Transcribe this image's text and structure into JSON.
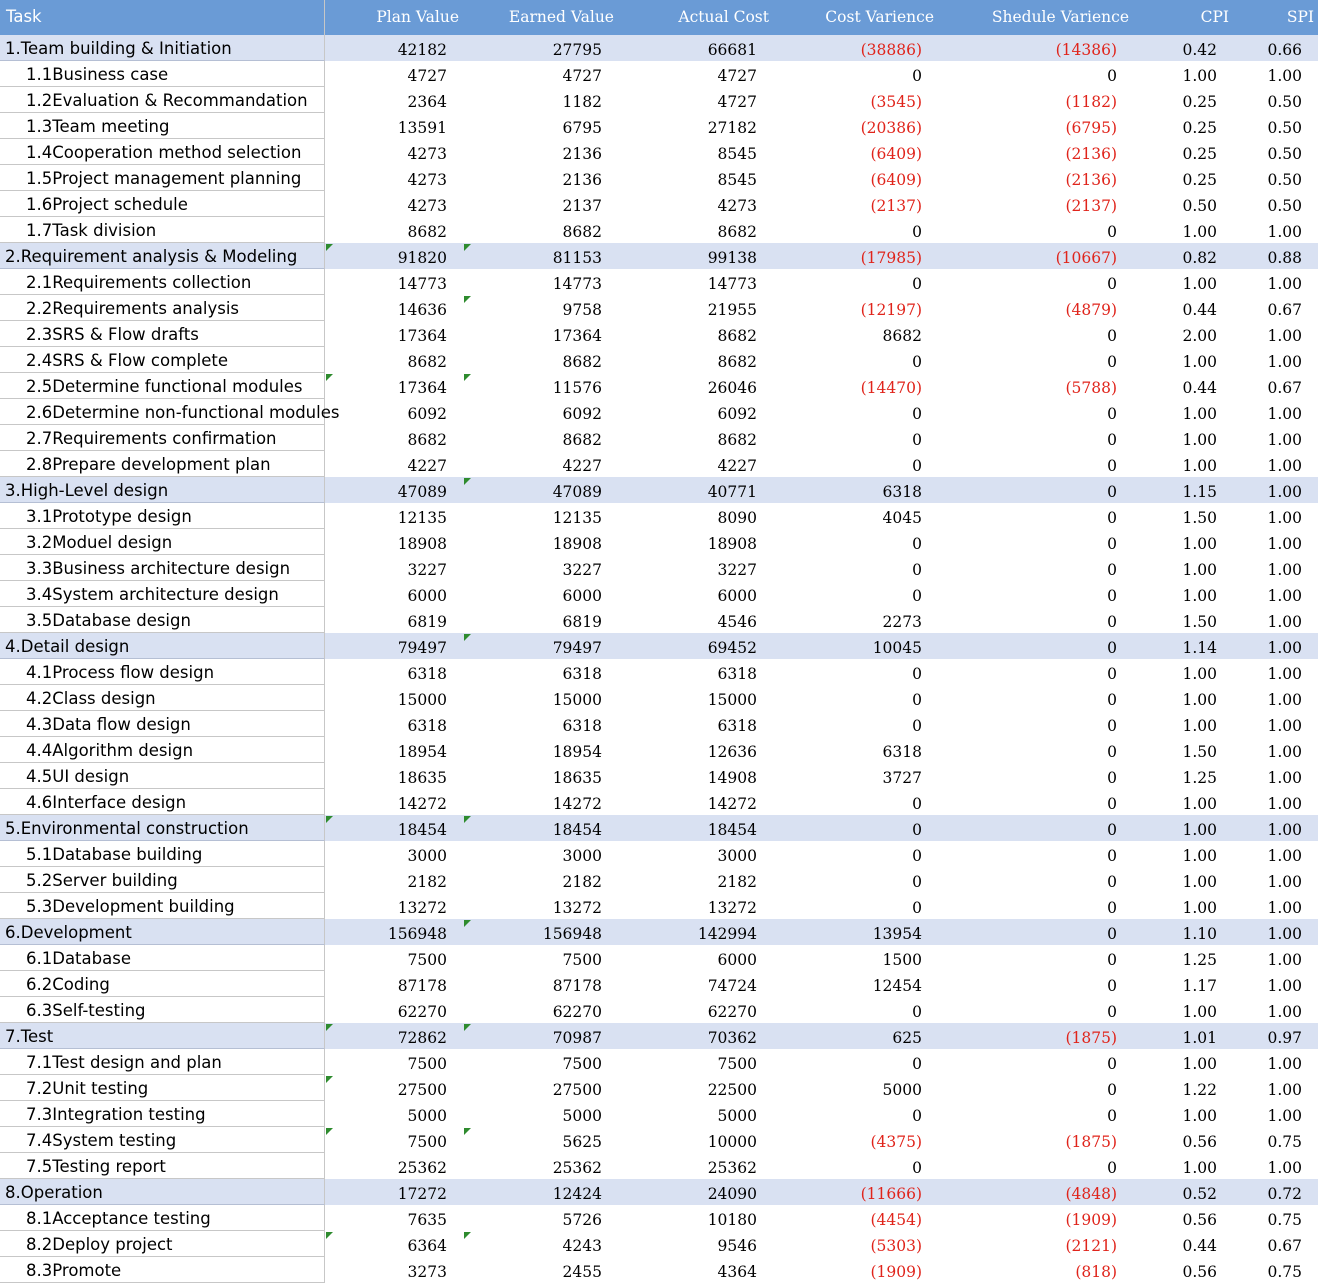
{
  "header": {
    "task": "Task",
    "plan_value": "Plan Value",
    "earned_value": "Earned Value",
    "actual_cost": "Actual Cost",
    "cost_variance": "Cost Varience",
    "schedule_variance": "Shedule Varience",
    "cpi": "CPI",
    "spi": "SPI"
  },
  "colors": {
    "header_bg": "#6a9bd6",
    "group_bg": "#d9e1f2",
    "negative": "#e0241b",
    "marker": "#2e8b2e"
  },
  "rows": [
    {
      "task": "1.Team building & Initiation",
      "pv": "42182",
      "ev": "27795",
      "ac": "66681",
      "cv": "(38886)",
      "sv": "(14386)",
      "cpi": "0.42",
      "spi": "0.66",
      "group": true
    },
    {
      "task": "1.1Business case",
      "pv": "4727",
      "ev": "4727",
      "ac": "4727",
      "cv": "0",
      "sv": "0",
      "cpi": "1.00",
      "spi": "1.00"
    },
    {
      "task": "1.2Evaluation & Recommandation",
      "pv": "2364",
      "ev": "1182",
      "ac": "4727",
      "cv": "(3545)",
      "sv": "(1182)",
      "cpi": "0.25",
      "spi": "0.50"
    },
    {
      "task": "1.3Team meeting",
      "pv": "13591",
      "ev": "6795",
      "ac": "27182",
      "cv": "(20386)",
      "sv": "(6795)",
      "cpi": "0.25",
      "spi": "0.50"
    },
    {
      "task": "1.4Cooperation method selection",
      "pv": "4273",
      "ev": "2136",
      "ac": "8545",
      "cv": "(6409)",
      "sv": "(2136)",
      "cpi": "0.25",
      "spi": "0.50"
    },
    {
      "task": "1.5Project management planning",
      "pv": "4273",
      "ev": "2136",
      "ac": "8545",
      "cv": "(6409)",
      "sv": "(2136)",
      "cpi": "0.25",
      "spi": "0.50"
    },
    {
      "task": "1.6Project schedule",
      "pv": "4273",
      "ev": "2137",
      "ac": "4273",
      "cv": "(2137)",
      "sv": "(2137)",
      "cpi": "0.50",
      "spi": "0.50"
    },
    {
      "task": "1.7Task division",
      "pv": "8682",
      "ev": "8682",
      "ac": "8682",
      "cv": "0",
      "sv": "0",
      "cpi": "1.00",
      "spi": "1.00"
    },
    {
      "task": "2.Requirement analysis & Modeling",
      "pv": "91820",
      "ev": "81153",
      "ac": "99138",
      "cv": "(17985)",
      "sv": "(10667)",
      "cpi": "0.82",
      "spi": "0.88",
      "group": true,
      "mpv": true,
      "mev": true
    },
    {
      "task": "2.1Requirements collection",
      "pv": "14773",
      "ev": "14773",
      "ac": "14773",
      "cv": "0",
      "sv": "0",
      "cpi": "1.00",
      "spi": "1.00"
    },
    {
      "task": "2.2Requirements analysis",
      "pv": "14636",
      "ev": "9758",
      "ac": "21955",
      "cv": "(12197)",
      "sv": "(4879)",
      "cpi": "0.44",
      "spi": "0.67",
      "mev": true
    },
    {
      "task": "2.3SRS & Flow drafts",
      "pv": "17364",
      "ev": "17364",
      "ac": "8682",
      "cv": "8682",
      "sv": "0",
      "cpi": "2.00",
      "spi": "1.00"
    },
    {
      "task": "2.4SRS & Flow complete",
      "pv": "8682",
      "ev": "8682",
      "ac": "8682",
      "cv": "0",
      "sv": "0",
      "cpi": "1.00",
      "spi": "1.00"
    },
    {
      "task": "2.5Determine functional modules",
      "pv": "17364",
      "ev": "11576",
      "ac": "26046",
      "cv": "(14470)",
      "sv": "(5788)",
      "cpi": "0.44",
      "spi": "0.67",
      "mpv": true,
      "mev": true
    },
    {
      "task": "2.6Determine non-functional modules",
      "pv": "6092",
      "ev": "6092",
      "ac": "6092",
      "cv": "0",
      "sv": "0",
      "cpi": "1.00",
      "spi": "1.00"
    },
    {
      "task": "2.7Requirements confirmation",
      "pv": "8682",
      "ev": "8682",
      "ac": "8682",
      "cv": "0",
      "sv": "0",
      "cpi": "1.00",
      "spi": "1.00"
    },
    {
      "task": "2.8Prepare development plan",
      "pv": "4227",
      "ev": "4227",
      "ac": "4227",
      "cv": "0",
      "sv": "0",
      "cpi": "1.00",
      "spi": "1.00"
    },
    {
      "task": "3.High-Level design",
      "pv": "47089",
      "ev": "47089",
      "ac": "40771",
      "cv": "6318",
      "sv": "0",
      "cpi": "1.15",
      "spi": "1.00",
      "group": true,
      "mev": true
    },
    {
      "task": "3.1Prototype design",
      "pv": "12135",
      "ev": "12135",
      "ac": "8090",
      "cv": "4045",
      "sv": "0",
      "cpi": "1.50",
      "spi": "1.00"
    },
    {
      "task": "3.2Moduel design",
      "pv": "18908",
      "ev": "18908",
      "ac": "18908",
      "cv": "0",
      "sv": "0",
      "cpi": "1.00",
      "spi": "1.00"
    },
    {
      "task": "3.3Business architecture design",
      "pv": "3227",
      "ev": "3227",
      "ac": "3227",
      "cv": "0",
      "sv": "0",
      "cpi": "1.00",
      "spi": "1.00"
    },
    {
      "task": "3.4System architecture design",
      "pv": "6000",
      "ev": "6000",
      "ac": "6000",
      "cv": "0",
      "sv": "0",
      "cpi": "1.00",
      "spi": "1.00"
    },
    {
      "task": "3.5Database design",
      "pv": "6819",
      "ev": "6819",
      "ac": "4546",
      "cv": "2273",
      "sv": "0",
      "cpi": "1.50",
      "spi": "1.00"
    },
    {
      "task": "4.Detail design",
      "pv": "79497",
      "ev": "79497",
      "ac": "69452",
      "cv": "10045",
      "sv": "0",
      "cpi": "1.14",
      "spi": "1.00",
      "group": true,
      "mev": true
    },
    {
      "task": "4.1Process flow design",
      "pv": "6318",
      "ev": "6318",
      "ac": "6318",
      "cv": "0",
      "sv": "0",
      "cpi": "1.00",
      "spi": "1.00"
    },
    {
      "task": "4.2Class design",
      "pv": "15000",
      "ev": "15000",
      "ac": "15000",
      "cv": "0",
      "sv": "0",
      "cpi": "1.00",
      "spi": "1.00"
    },
    {
      "task": "4.3Data flow design",
      "pv": "6318",
      "ev": "6318",
      "ac": "6318",
      "cv": "0",
      "sv": "0",
      "cpi": "1.00",
      "spi": "1.00"
    },
    {
      "task": "4.4Algorithm design",
      "pv": "18954",
      "ev": "18954",
      "ac": "12636",
      "cv": "6318",
      "sv": "0",
      "cpi": "1.50",
      "spi": "1.00"
    },
    {
      "task": "4.5UI design",
      "pv": "18635",
      "ev": "18635",
      "ac": "14908",
      "cv": "3727",
      "sv": "0",
      "cpi": "1.25",
      "spi": "1.00"
    },
    {
      "task": "4.6Interface design",
      "pv": "14272",
      "ev": "14272",
      "ac": "14272",
      "cv": "0",
      "sv": "0",
      "cpi": "1.00",
      "spi": "1.00"
    },
    {
      "task": "5.Environmental construction",
      "pv": "18454",
      "ev": "18454",
      "ac": "18454",
      "cv": "0",
      "sv": "0",
      "cpi": "1.00",
      "spi": "1.00",
      "group": true,
      "mpv": true,
      "mev": true
    },
    {
      "task": "5.1Database building",
      "pv": "3000",
      "ev": "3000",
      "ac": "3000",
      "cv": "0",
      "sv": "0",
      "cpi": "1.00",
      "spi": "1.00"
    },
    {
      "task": "5.2Server building",
      "pv": "2182",
      "ev": "2182",
      "ac": "2182",
      "cv": "0",
      "sv": "0",
      "cpi": "1.00",
      "spi": "1.00"
    },
    {
      "task": "5.3Development building",
      "pv": "13272",
      "ev": "13272",
      "ac": "13272",
      "cv": "0",
      "sv": "0",
      "cpi": "1.00",
      "spi": "1.00"
    },
    {
      "task": "6.Development",
      "pv": "156948",
      "ev": "156948",
      "ac": "142994",
      "cv": "13954",
      "sv": "0",
      "cpi": "1.10",
      "spi": "1.00",
      "group": true,
      "mev": true
    },
    {
      "task": "6.1Database",
      "pv": "7500",
      "ev": "7500",
      "ac": "6000",
      "cv": "1500",
      "sv": "0",
      "cpi": "1.25",
      "spi": "1.00"
    },
    {
      "task": "6.2Coding",
      "pv": "87178",
      "ev": "87178",
      "ac": "74724",
      "cv": "12454",
      "sv": "0",
      "cpi": "1.17",
      "spi": "1.00"
    },
    {
      "task": "6.3Self-testing",
      "pv": "62270",
      "ev": "62270",
      "ac": "62270",
      "cv": "0",
      "sv": "0",
      "cpi": "1.00",
      "spi": "1.00"
    },
    {
      "task": "7.Test",
      "pv": "72862",
      "ev": "70987",
      "ac": "70362",
      "cv": "625",
      "sv": "(1875)",
      "cpi": "1.01",
      "spi": "0.97",
      "group": true,
      "mpv": true,
      "mev": true
    },
    {
      "task": "7.1Test design and plan",
      "pv": "7500",
      "ev": "7500",
      "ac": "7500",
      "cv": "0",
      "sv": "0",
      "cpi": "1.00",
      "spi": "1.00"
    },
    {
      "task": "7.2Unit testing",
      "pv": "27500",
      "ev": "27500",
      "ac": "22500",
      "cv": "5000",
      "sv": "0",
      "cpi": "1.22",
      "spi": "1.00",
      "mpv": true
    },
    {
      "task": "7.3Integration testing",
      "pv": "5000",
      "ev": "5000",
      "ac": "5000",
      "cv": "0",
      "sv": "0",
      "cpi": "1.00",
      "spi": "1.00"
    },
    {
      "task": "7.4System testing",
      "pv": "7500",
      "ev": "5625",
      "ac": "10000",
      "cv": "(4375)",
      "sv": "(1875)",
      "cpi": "0.56",
      "spi": "0.75",
      "mpv": true,
      "mev": true
    },
    {
      "task": "7.5Testing report",
      "pv": "25362",
      "ev": "25362",
      "ac": "25362",
      "cv": "0",
      "sv": "0",
      "cpi": "1.00",
      "spi": "1.00"
    },
    {
      "task": "8.Operation",
      "pv": "17272",
      "ev": "12424",
      "ac": "24090",
      "cv": "(11666)",
      "sv": "(4848)",
      "cpi": "0.52",
      "spi": "0.72",
      "group": true
    },
    {
      "task": "8.1Acceptance testing",
      "pv": "7635",
      "ev": "5726",
      "ac": "10180",
      "cv": "(4454)",
      "sv": "(1909)",
      "cpi": "0.56",
      "spi": "0.75"
    },
    {
      "task": "8.2Deploy project",
      "pv": "6364",
      "ev": "4243",
      "ac": "9546",
      "cv": "(5303)",
      "sv": "(2121)",
      "cpi": "0.44",
      "spi": "0.67",
      "mpv": true,
      "mev": true
    },
    {
      "task": "8.3Promote",
      "pv": "3273",
      "ev": "2455",
      "ac": "4364",
      "cv": "(1909)",
      "sv": "(818)",
      "cpi": "0.56",
      "spi": "0.75"
    }
  ]
}
